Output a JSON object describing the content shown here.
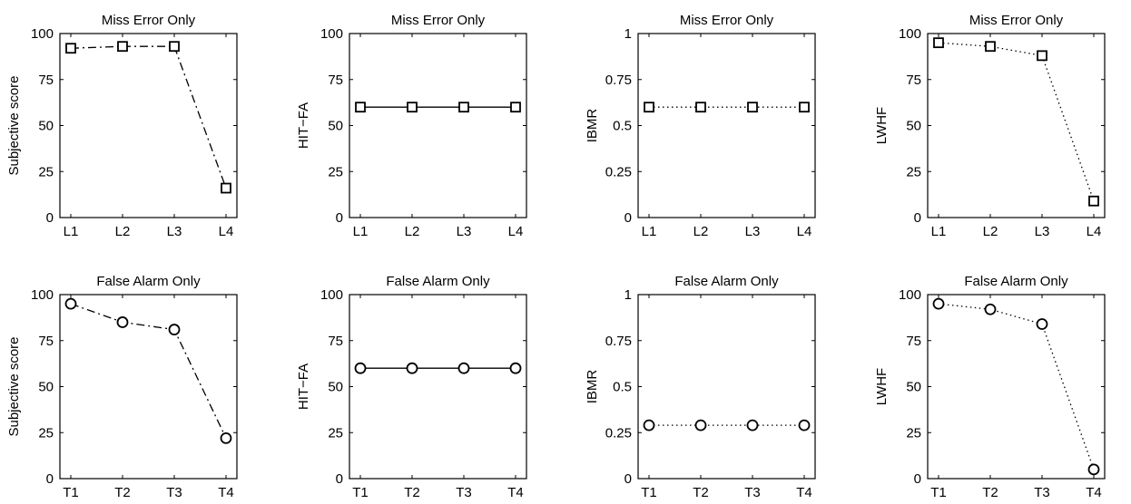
{
  "chart_data": [
    {
      "type": "line",
      "title": "Miss Error Only",
      "xlabel": "",
      "ylabel": "Subjective score",
      "categories": [
        "L1",
        "L2",
        "L3",
        "L4"
      ],
      "values": [
        92,
        93,
        93,
        16
      ],
      "ylim": [
        0,
        100
      ],
      "yticks": [
        "0",
        "25",
        "50",
        "75",
        "100"
      ],
      "marker": "square",
      "linestyle": "dashdot",
      "grid": false
    },
    {
      "type": "line",
      "title": "Miss Error Only",
      "xlabel": "",
      "ylabel": "HIT−FA",
      "categories": [
        "L1",
        "L2",
        "L3",
        "L4"
      ],
      "values": [
        60,
        60,
        60,
        60
      ],
      "ylim": [
        0,
        100
      ],
      "yticks": [
        "0",
        "25",
        "50",
        "75",
        "100"
      ],
      "marker": "square",
      "linestyle": "solid",
      "grid": false
    },
    {
      "type": "line",
      "title": "Miss Error Only",
      "xlabel": "",
      "ylabel": "IBMR",
      "categories": [
        "L1",
        "L2",
        "L3",
        "L4"
      ],
      "values": [
        0.6,
        0.6,
        0.6,
        0.6
      ],
      "ylim": [
        0,
        1
      ],
      "yticks": [
        "0",
        "0.25",
        "0.5",
        "0.75",
        "1"
      ],
      "marker": "square",
      "linestyle": "dotted",
      "grid": false
    },
    {
      "type": "line",
      "title": "Miss Error Only",
      "xlabel": "",
      "ylabel": "LWHF",
      "categories": [
        "L1",
        "L2",
        "L3",
        "L4"
      ],
      "values": [
        95,
        93,
        88,
        9
      ],
      "ylim": [
        0,
        100
      ],
      "yticks": [
        "0",
        "25",
        "50",
        "75",
        "100"
      ],
      "marker": "square",
      "linestyle": "dotted",
      "grid": false
    },
    {
      "type": "line",
      "title": "False Alarm Only",
      "xlabel": "",
      "ylabel": "Subjective score",
      "categories": [
        "T1",
        "T2",
        "T3",
        "T4"
      ],
      "values": [
        95,
        85,
        81,
        22
      ],
      "ylim": [
        0,
        100
      ],
      "yticks": [
        "0",
        "25",
        "50",
        "75",
        "100"
      ],
      "marker": "circle",
      "linestyle": "dashdot",
      "grid": false
    },
    {
      "type": "line",
      "title": "False Alarm Only",
      "xlabel": "",
      "ylabel": "HIT−FA",
      "categories": [
        "T1",
        "T2",
        "T3",
        "T4"
      ],
      "values": [
        60,
        60,
        60,
        60
      ],
      "ylim": [
        0,
        100
      ],
      "yticks": [
        "0",
        "25",
        "50",
        "75",
        "100"
      ],
      "marker": "circle",
      "linestyle": "solid",
      "grid": false
    },
    {
      "type": "line",
      "title": "False Alarm Only",
      "xlabel": "",
      "ylabel": "IBMR",
      "categories": [
        "T1",
        "T2",
        "T3",
        "T4"
      ],
      "values": [
        0.29,
        0.29,
        0.29,
        0.29
      ],
      "ylim": [
        0,
        1
      ],
      "yticks": [
        "0",
        "0.25",
        "0.5",
        "0.75",
        "1"
      ],
      "marker": "circle",
      "linestyle": "dotted",
      "grid": false
    },
    {
      "type": "line",
      "title": "False Alarm Only",
      "xlabel": "",
      "ylabel": "LWHF",
      "categories": [
        "T1",
        "T2",
        "T3",
        "T4"
      ],
      "values": [
        95,
        92,
        84,
        5
      ],
      "ylim": [
        0,
        100
      ],
      "yticks": [
        "0",
        "25",
        "50",
        "75",
        "100"
      ],
      "marker": "circle",
      "linestyle": "dotted",
      "grid": false
    }
  ]
}
